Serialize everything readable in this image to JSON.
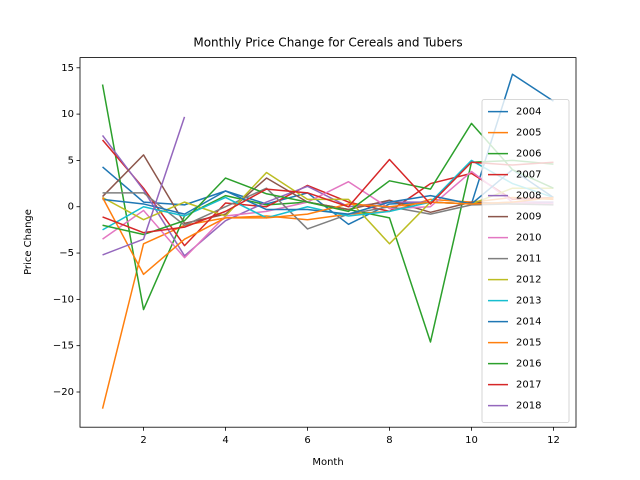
{
  "chart_data": {
    "type": "line",
    "title": "Monthly Price Change for Cereals and Tubers",
    "xlabel": "Month",
    "ylabel": "Price Change",
    "x": [
      1,
      2,
      3,
      4,
      5,
      6,
      7,
      8,
      9,
      10,
      11,
      12
    ],
    "xlim": [
      0.45,
      12.55
    ],
    "xticks": [
      2,
      4,
      6,
      8,
      10,
      12
    ],
    "ylim": [
      -23.8,
      16.1
    ],
    "yticks": [
      {
        "value": -20,
        "label": "−20"
      },
      {
        "value": -15,
        "label": "−15"
      },
      {
        "value": -10,
        "label": "−10"
      },
      {
        "value": -5,
        "label": "−5"
      },
      0,
      5,
      10,
      15
    ],
    "legend": "upper right",
    "series": [
      {
        "name": "2004",
        "color": "#1f77b4",
        "values": [
          4.3,
          0.5,
          0.2,
          1.7,
          0.3,
          1.5,
          -1.9,
          0.3,
          0.5,
          0.3,
          14.3,
          11.4
        ]
      },
      {
        "name": "2005",
        "color": "#ff7f0e",
        "values": [
          -21.8,
          -4.0,
          -2.0,
          -1.2,
          -1.0,
          -1.4,
          -0.8,
          -0.5,
          0.8,
          0.5,
          1.0,
          0.8
        ]
      },
      {
        "name": "2006",
        "color": "#2ca02c",
        "values": [
          13.2,
          -11.1,
          -1.0,
          1.2,
          0.2,
          0.5,
          -0.3,
          -1.2,
          -14.6,
          4.8,
          5.0,
          4.6
        ]
      },
      {
        "name": "2007",
        "color": "#d62728",
        "values": [
          7.2,
          2.0,
          -4.2,
          0.4,
          0.0,
          2.3,
          0.5,
          -0.5,
          2.5,
          3.6,
          0.8,
          1.0
        ]
      },
      {
        "name": "2008",
        "color": "#9467bd",
        "values": [
          7.7,
          1.8,
          -5.3,
          -1.5,
          0.5,
          2.2,
          0.0,
          0.5,
          0.5,
          0.3,
          0.5,
          0.5
        ]
      },
      {
        "name": "2009",
        "color": "#8c564b",
        "values": [
          1.1,
          5.6,
          -1.8,
          -0.8,
          3.1,
          0.5,
          -0.3,
          0.7,
          -0.6,
          0.5,
          0.3,
          0.3
        ]
      },
      {
        "name": "2010",
        "color": "#e377c2",
        "values": [
          -3.5,
          -0.4,
          -5.5,
          -1.0,
          -0.5,
          0.5,
          2.7,
          -0.2,
          0.0,
          3.8,
          0.5,
          0.3
        ]
      },
      {
        "name": "2011",
        "color": "#7f7f7f",
        "values": [
          1.5,
          1.5,
          -2.0,
          0.0,
          2.0,
          -2.4,
          -0.8,
          0.0,
          -0.8,
          0.2,
          0.3,
          0.2
        ]
      },
      {
        "name": "2012",
        "color": "#bcbd22",
        "values": [
          1.0,
          -1.4,
          0.5,
          -1.0,
          3.7,
          0.8,
          0.8,
          -4.0,
          0.5,
          0.3,
          2.0,
          2.0
        ]
      },
      {
        "name": "2013",
        "color": "#17becf",
        "values": [
          -2.5,
          0.0,
          -1.0,
          1.0,
          -1.2,
          0.0,
          -1.0,
          -0.5,
          0.5,
          5.0,
          2.5,
          1.0
        ]
      },
      {
        "name": "2014",
        "color": "#1f77b4",
        "values": [
          0.8,
          0.3,
          -0.8,
          1.7,
          -0.3,
          -0.3,
          -0.8,
          0.5,
          1.2,
          0.3,
          4.0,
          1.0
        ]
      },
      {
        "name": "2015",
        "color": "#ff7f0e",
        "values": [
          1.0,
          -7.3,
          -3.5,
          -1.2,
          -1.2,
          -0.8,
          0.3,
          0.0,
          0.5,
          0.3,
          0.5,
          1.0
        ]
      },
      {
        "name": "2016",
        "color": "#2ca02c",
        "values": [
          -2.0,
          -3.0,
          -1.5,
          3.1,
          1.4,
          0.5,
          -0.5,
          2.8,
          1.9,
          9.0,
          4.0,
          2.0
        ]
      },
      {
        "name": "2017",
        "color": "#d62728",
        "values": [
          -1.1,
          -2.8,
          -2.2,
          -0.5,
          1.9,
          1.5,
          0.0,
          5.1,
          0.3,
          4.8,
          4.5,
          4.8
        ]
      },
      {
        "name": "2018",
        "color": "#9467bd",
        "values": [
          -5.2,
          -3.5,
          9.7,
          null,
          null,
          null,
          null,
          null,
          null,
          null,
          null,
          null
        ]
      }
    ]
  }
}
